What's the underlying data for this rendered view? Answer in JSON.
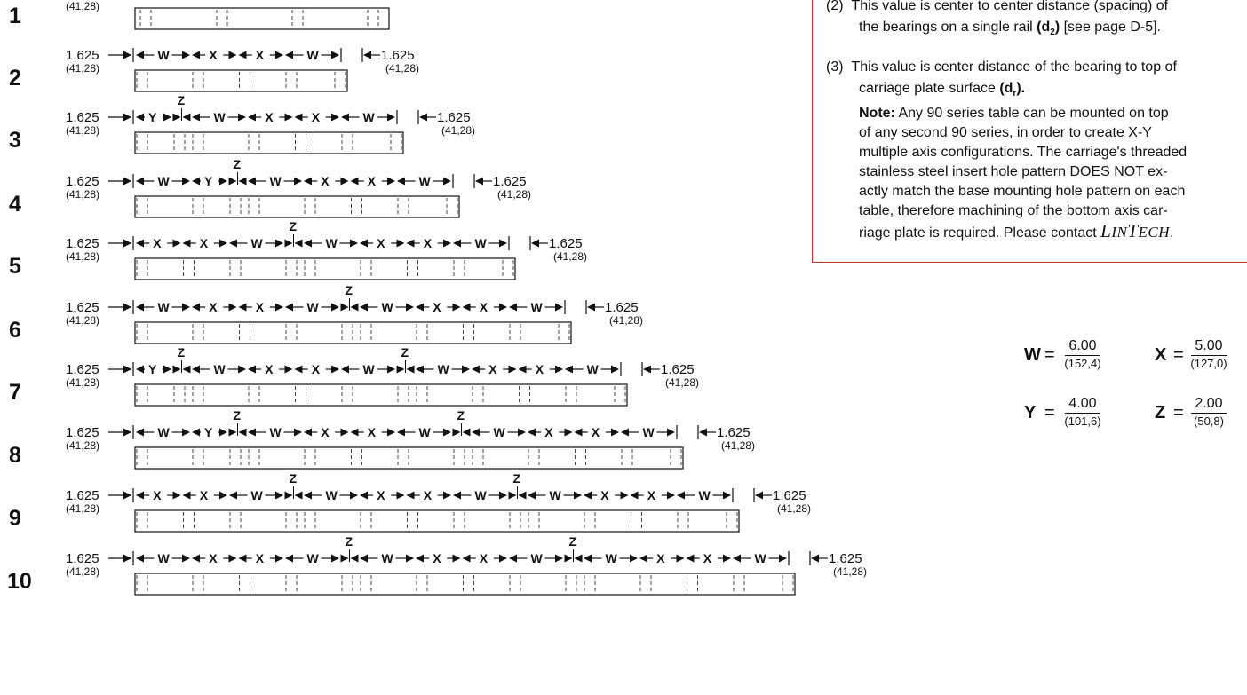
{
  "notes": {
    "note2_prefix": "(2)",
    "note2_text_a": "This value is center to center distance (spacing) of",
    "note2_text_b_pre": "the bearings on a single rail",
    "note2_sym": "(d",
    "note2_sub": "2",
    "note2_sym_end": ")",
    "note2_text_b_post": "[see page D-5].",
    "note3_prefix": "(3)",
    "note3_text_a": "This value is center distance of the bearing to top of",
    "note3_text_b_pre": "carriage plate surface",
    "note3_sym": "(d",
    "note3_sub": "r",
    "note3_sym_end": ").",
    "note_label": "Note:",
    "note_line1": "Any 90 series table can be mounted on top",
    "note_line2": "of any second 90 series, in order to create X-Y",
    "note_line3": "multiple axis configurations. The carriage's threaded",
    "note_line4": "stainless steel insert hole pattern DOES NOT ex-",
    "note_line5": "actly match the base mounting hole pattern on each",
    "note_line6": "table, therefore machining of the bottom axis car-",
    "note_line7": "riage plate is required. Please contact",
    "brand_L": "L",
    "brand_in": "IN",
    "brand_T": "T",
    "brand_ech": "ECH",
    "brand_end": "."
  },
  "legend": {
    "W": {
      "key": "W",
      "eq": "=",
      "in": "6.00",
      "mm": "(152,4)"
    },
    "X": {
      "key": "X",
      "eq": "=",
      "in": "5.00",
      "mm": "(127,0)"
    },
    "Y": {
      "key": "Y",
      "eq": "=",
      "in": "4.00",
      "mm": "(101,6)"
    },
    "Z": {
      "key": "Z",
      "eq": "=",
      "in": "2.00",
      "mm": "(50,8)"
    }
  },
  "end_dim": {
    "in": "1.625",
    "mm": "(41,28)"
  },
  "rows": [
    {
      "num": "1",
      "sections": []
    },
    {
      "num": "2",
      "sections": [
        "W",
        "X",
        "X",
        "W"
      ]
    },
    {
      "num": "3",
      "sections": [
        "Y",
        "Z",
        "W",
        "X",
        "X",
        "W"
      ]
    },
    {
      "num": "4",
      "sections": [
        "W",
        "Y",
        "Z",
        "W",
        "X",
        "X",
        "W"
      ]
    },
    {
      "num": "5",
      "sections": [
        "X",
        "X",
        "W",
        "Z",
        "W",
        "X",
        "X",
        "W"
      ]
    },
    {
      "num": "6",
      "sections": [
        "W",
        "X",
        "X",
        "W",
        "Z",
        "W",
        "X",
        "X",
        "W"
      ]
    },
    {
      "num": "7",
      "sections": [
        "Y",
        "Z",
        "W",
        "X",
        "X",
        "W",
        "Z",
        "W",
        "X",
        "X",
        "W"
      ]
    },
    {
      "num": "8",
      "sections": [
        "W",
        "Y",
        "Z",
        "W",
        "X",
        "X",
        "W",
        "Z",
        "W",
        "X",
        "X",
        "W"
      ]
    },
    {
      "num": "9",
      "sections": [
        "X",
        "X",
        "W",
        "Z",
        "W",
        "X",
        "X",
        "W",
        "Z",
        "W",
        "X",
        "X",
        "W"
      ]
    },
    {
      "num": "10",
      "sections": [
        "W",
        "X",
        "X",
        "W",
        "Z",
        "W",
        "X",
        "X",
        "W",
        "Z",
        "W",
        "X",
        "X",
        "W"
      ]
    }
  ]
}
